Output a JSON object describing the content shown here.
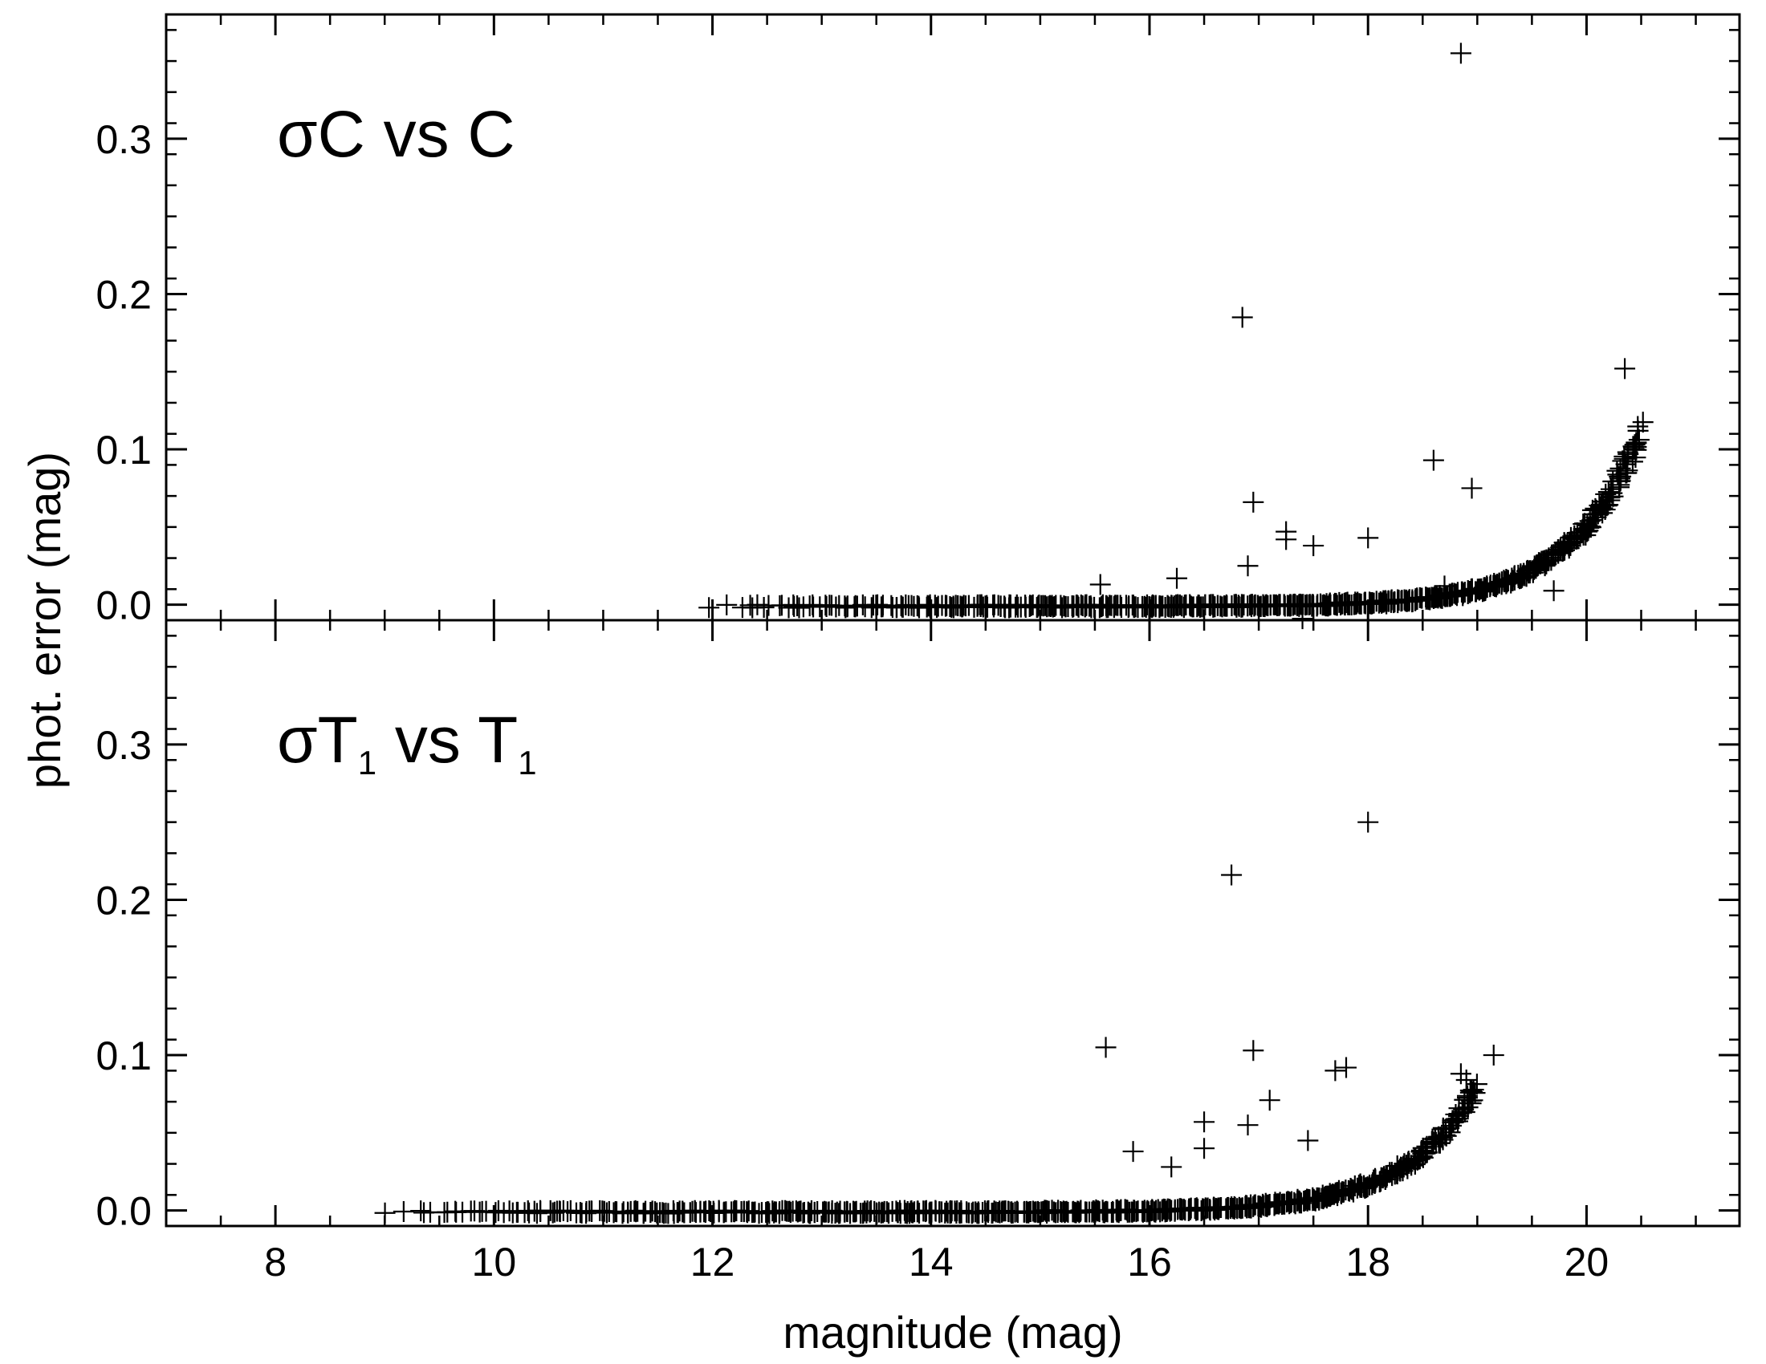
{
  "chart_data": [
    {
      "type": "scatter",
      "panel": "top",
      "title": "σC vs C",
      "xlabel": "magnitude (mag)",
      "ylabel": "phot. error (mag)",
      "xlim": [
        7,
        21.4
      ],
      "ylim": [
        -0.01,
        0.38
      ],
      "marker": "plus",
      "y_ticks": [
        "0.0",
        "0.1",
        "0.2",
        "0.3"
      ],
      "y_tick_values": [
        0.0,
        0.1,
        0.2,
        0.3
      ],
      "curve": {
        "x_start": 12.0,
        "x_end": 20.5,
        "y_start": 0.0,
        "y_end": 0.115,
        "scale": 1.6
      },
      "outliers": [
        {
          "x": 18.85,
          "y": 0.355
        },
        {
          "x": 16.85,
          "y": 0.185
        },
        {
          "x": 20.35,
          "y": 0.152
        },
        {
          "x": 18.6,
          "y": 0.093
        },
        {
          "x": 18.95,
          "y": 0.075
        },
        {
          "x": 16.95,
          "y": 0.066
        },
        {
          "x": 17.25,
          "y": 0.047
        },
        {
          "x": 17.25,
          "y": 0.042
        },
        {
          "x": 18.0,
          "y": 0.043
        },
        {
          "x": 17.5,
          "y": 0.038
        },
        {
          "x": 16.9,
          "y": 0.025
        },
        {
          "x": 16.25,
          "y": 0.017
        },
        {
          "x": 15.55,
          "y": 0.013
        },
        {
          "x": 19.7,
          "y": 0.009
        },
        {
          "x": 18.7,
          "y": 0.012
        },
        {
          "x": 17.4,
          "y": -0.009
        }
      ]
    },
    {
      "type": "scatter",
      "panel": "bottom",
      "title": "σT1 vs T1",
      "title_main": "σT",
      "title_sub": "1",
      "title_mid": " vs T",
      "title_sub2": "1",
      "xlabel": "magnitude (mag)",
      "ylabel": "phot. error (mag)",
      "xlim": [
        7,
        21.4
      ],
      "ylim": [
        -0.01,
        0.38
      ],
      "marker": "plus",
      "x_ticks": [
        "8",
        "10",
        "12",
        "14",
        "16",
        "18",
        "20"
      ],
      "x_tick_values": [
        8,
        10,
        12,
        14,
        16,
        18,
        20
      ],
      "y_ticks": [
        "0.0",
        "0.1",
        "0.2",
        "0.3"
      ],
      "y_tick_values": [
        0.0,
        0.1,
        0.2,
        0.3
      ],
      "curve": {
        "x_start": 9.0,
        "x_end": 19.0,
        "y_start": 0.0,
        "y_end": 0.08,
        "scale": 1.5
      },
      "outliers": [
        {
          "x": 18.0,
          "y": 0.25
        },
        {
          "x": 16.75,
          "y": 0.216
        },
        {
          "x": 15.6,
          "y": 0.105
        },
        {
          "x": 16.95,
          "y": 0.103
        },
        {
          "x": 19.15,
          "y": 0.1
        },
        {
          "x": 17.8,
          "y": 0.092
        },
        {
          "x": 17.7,
          "y": 0.09
        },
        {
          "x": 18.85,
          "y": 0.088
        },
        {
          "x": 18.9,
          "y": 0.084
        },
        {
          "x": 17.1,
          "y": 0.071
        },
        {
          "x": 16.5,
          "y": 0.057
        },
        {
          "x": 16.9,
          "y": 0.055
        },
        {
          "x": 17.45,
          "y": 0.045
        },
        {
          "x": 16.5,
          "y": 0.04
        },
        {
          "x": 15.85,
          "y": 0.038
        },
        {
          "x": 16.2,
          "y": 0.028
        }
      ]
    }
  ]
}
